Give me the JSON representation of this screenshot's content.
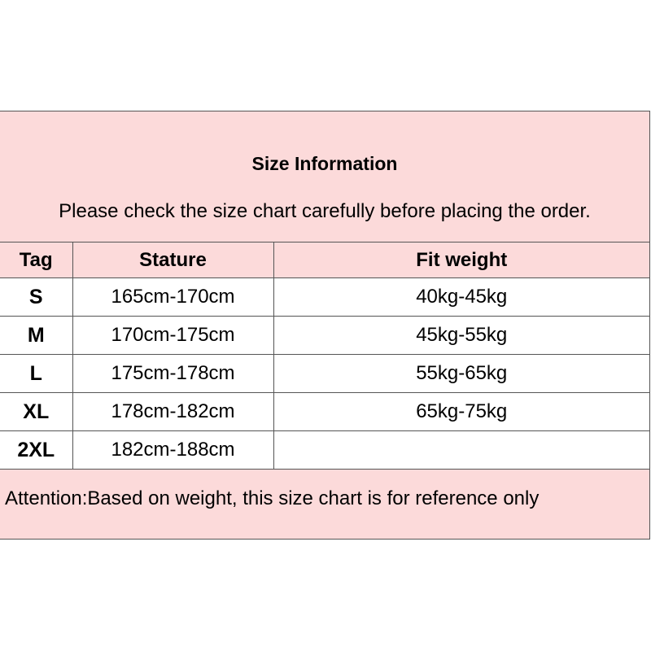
{
  "header": {
    "title": "Size Information",
    "subtitle": "Please check the size chart carefully before placing the order."
  },
  "columns": [
    "Tag",
    "Stature",
    "Fit weight"
  ],
  "rows": [
    {
      "tag": "S",
      "stature": "165cm-170cm",
      "weight": "40kg-45kg"
    },
    {
      "tag": "M",
      "stature": "170cm-175cm",
      "weight": "45kg-55kg"
    },
    {
      "tag": "L",
      "stature": "175cm-178cm",
      "weight": "55kg-65kg"
    },
    {
      "tag": "XL",
      "stature": "178cm-182cm",
      "weight": "65kg-75kg"
    },
    {
      "tag": "2XL",
      "stature": "182cm-188cm",
      "weight": ""
    }
  ],
  "note": "Attention:Based on weight, this size chart is for reference only",
  "colors": {
    "header_bg": "#fcdada",
    "border": "#555555"
  }
}
